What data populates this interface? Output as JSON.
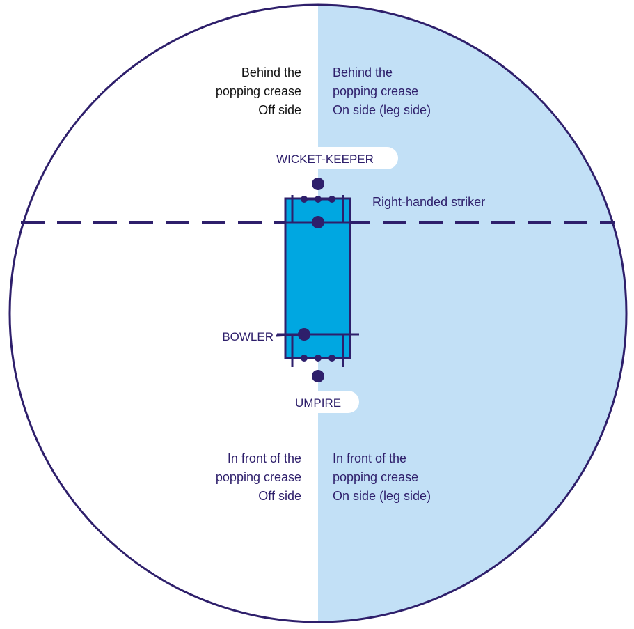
{
  "colors": {
    "on_side_fill": "#c2e0f6",
    "pitch_fill": "#00a7e1",
    "ink": "#2e1f6b",
    "black_text": "#111111",
    "background": "#ffffff"
  },
  "quadrants": {
    "top_left": [
      "Behind the",
      "popping crease",
      "Off side"
    ],
    "top_right": [
      "Behind the",
      "popping crease",
      "On side (leg side)"
    ],
    "bottom_left": [
      "In front of the",
      "popping crease",
      "Off side"
    ],
    "bottom_right": [
      "In front of the",
      "popping crease",
      "On side (leg side)"
    ]
  },
  "positions": {
    "wicket_keeper": "WICKET-KEEPER",
    "bowler": "BOWLER",
    "umpire": "UMPIRE"
  },
  "striker_label": "Right-handed striker"
}
